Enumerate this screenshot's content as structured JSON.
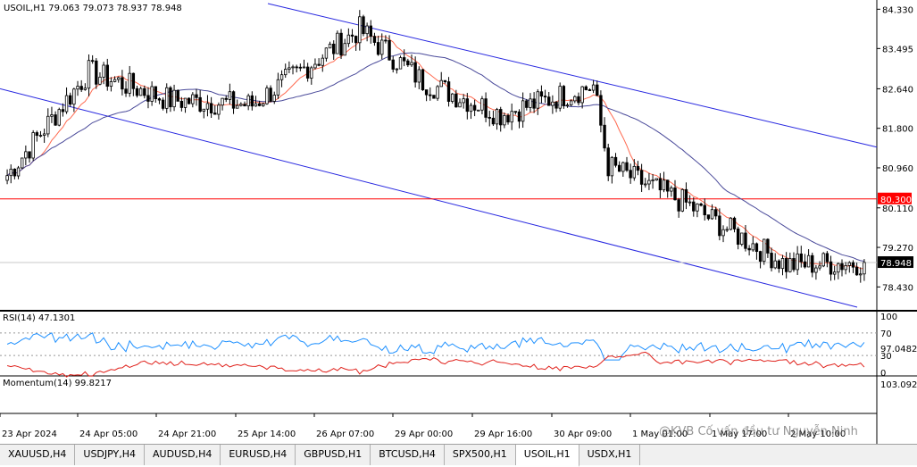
{
  "symbol_header": "USOIL,H1  79.063 79.073 78.937 78.948",
  "price_axis_ticks": [
    "84.330",
    "83.495",
    "82.640",
    "81.800",
    "80.960",
    "80.110",
    "79.270",
    "78.430"
  ],
  "h_line": {
    "value": 80.3,
    "label": "80.300",
    "color": "#ff0000"
  },
  "current_price": {
    "value": 78.948,
    "label": "78.948"
  },
  "rsi": {
    "label": "RSI(14) 47.1301",
    "levels": [
      "100",
      "70",
      "30",
      "0"
    ],
    "color": "#1e90ff"
  },
  "momentum": {
    "label": "Momentum(14) 99.8217",
    "levels": [
      "103.0925",
      "97.0482"
    ],
    "color": "#e0201a"
  },
  "time_axis": [
    "23 Apr 2024",
    "24 Apr 05:00",
    "24 Apr 21:00",
    "25 Apr 14:00",
    "26 Apr 07:00",
    "29 Apr 00:00",
    "29 Apr 16:00",
    "30 Apr 09:00",
    "1 May 01:00",
    "1 May 17:00",
    "2 May 10:00"
  ],
  "tabs": [
    {
      "label": "XAUUSD,H4",
      "active": false
    },
    {
      "label": "USDJPY,H4",
      "active": false
    },
    {
      "label": "AUDUSD,H4",
      "active": false
    },
    {
      "label": "EURUSD,H4",
      "active": false
    },
    {
      "label": "GBPUSD,H1",
      "active": false
    },
    {
      "label": "BTCUSD,H4",
      "active": false
    },
    {
      "label": "SPX500,H1",
      "active": false
    },
    {
      "label": "USOIL,H1",
      "active": true
    },
    {
      "label": "USDX,H1",
      "active": false
    }
  ],
  "watermark": "@KVB Cố vấn đầu tư Nguyễn Ninh",
  "colors": {
    "ma_fast": "#ff6a50",
    "ma_slow": "#4a4a9a",
    "channel": "#2828e0",
    "candle": "#000000"
  },
  "chart_data": {
    "type": "candlestick",
    "symbol": "USOIL",
    "timeframe": "H1",
    "ylim": [
      78.0,
      84.45
    ],
    "ohlc": [],
    "key_points": [
      {
        "x": "23 Apr 2024",
        "close": 80.8
      },
      {
        "x": "24 Apr 05:00",
        "close": 83.0
      },
      {
        "x": "24 Apr 21:00",
        "close": 82.4
      },
      {
        "x": "25 Apr 14:00",
        "close": 82.3
      },
      {
        "x": "26 Apr 07:00",
        "close": 83.9
      },
      {
        "x": "29 Apr 00:00",
        "close": 82.8
      },
      {
        "x": "29 Apr 16:00",
        "close": 82.1
      },
      {
        "x": "30 Apr 09:00",
        "close": 82.7
      },
      {
        "x": "30 Apr 10:00",
        "close": 81.0
      },
      {
        "x": "1 May 01:00",
        "close": 80.2
      },
      {
        "x": "1 May 17:00",
        "close": 78.9
      },
      {
        "x": "2 May 10:00",
        "close": 78.95
      }
    ]
  }
}
